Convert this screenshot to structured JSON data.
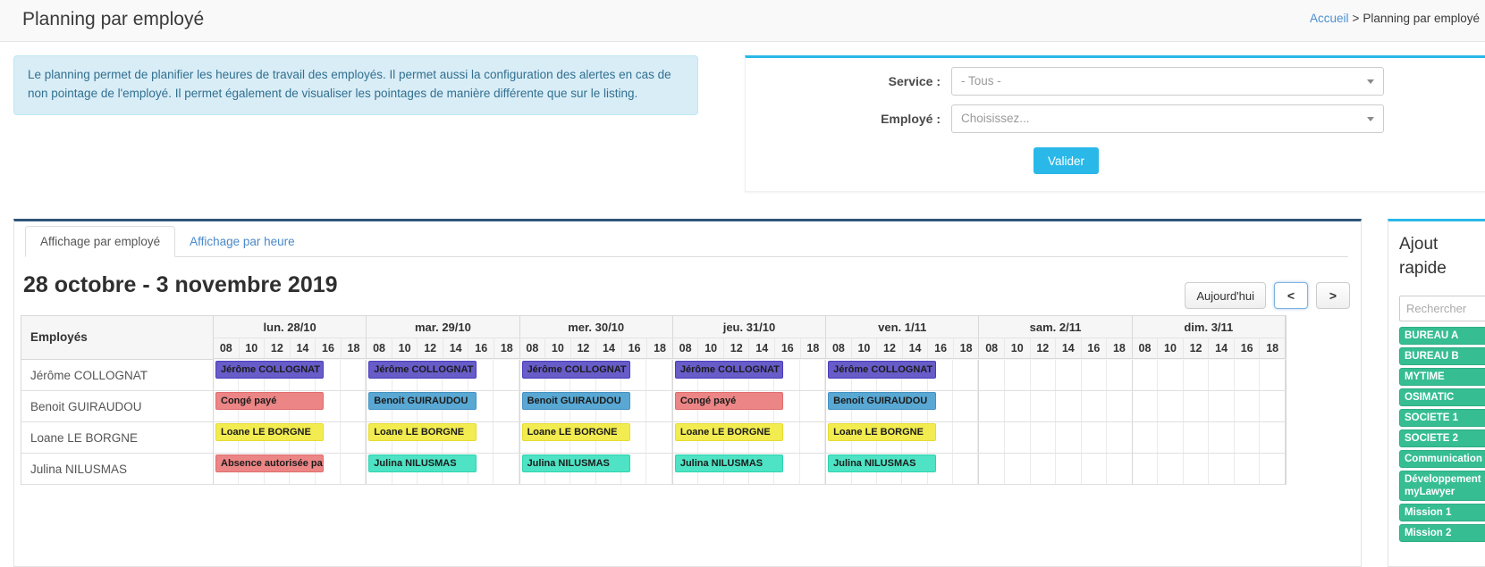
{
  "header": {
    "title": "Planning par employé",
    "breadcrumb": {
      "home": "Accueil",
      "separator": ">",
      "current": "Planning par employé"
    }
  },
  "info_text": "Le planning permet de planifier les heures de travail des employés. Il permet aussi la configuration des alertes en cas de non pointage de l'employé. Il permet également de visualiser les pointages de manière différente que sur le listing.",
  "filter": {
    "service_label": "Service :",
    "service_value": "- Tous -",
    "employee_label": "Employé :",
    "employee_placeholder": "Choisissez...",
    "submit_label": "Valider"
  },
  "tabs": {
    "by_employee": "Affichage par employé",
    "by_hour": "Affichage par heure"
  },
  "planning": {
    "period_title": "28 octobre - 3 novembre 2019",
    "today_label": "Aujourd'hui",
    "prev_label": "<",
    "next_label": ">"
  },
  "table": {
    "employee_header": "Employés",
    "hours": [
      "08",
      "10",
      "12",
      "14",
      "16",
      "18"
    ],
    "days": [
      "lun. 28/10",
      "mar. 29/10",
      "mer. 30/10",
      "jeu. 31/10",
      "ven. 1/11",
      "sam. 2/11",
      "dim. 3/11"
    ],
    "rows": [
      {
        "name": "Jérôme COLLOGNAT",
        "events": [
          {
            "day": 0,
            "label": "Jérôme COLLOGNAT",
            "color": "purple"
          },
          {
            "day": 1,
            "label": "Jérôme COLLOGNAT",
            "color": "purple"
          },
          {
            "day": 2,
            "label": "Jérôme COLLOGNAT",
            "color": "purple"
          },
          {
            "day": 3,
            "label": "Jérôme COLLOGNAT",
            "color": "purple"
          },
          {
            "day": 4,
            "label": "Jérôme COLLOGNAT",
            "color": "purple"
          }
        ]
      },
      {
        "name": "Benoit GUIRAUDOU",
        "events": [
          {
            "day": 0,
            "label": "Congé payé",
            "color": "red"
          },
          {
            "day": 1,
            "label": "Benoit GUIRAUDOU",
            "color": "blue"
          },
          {
            "day": 2,
            "label": "Benoit GUIRAUDOU",
            "color": "blue"
          },
          {
            "day": 3,
            "label": "Congé payé",
            "color": "red"
          },
          {
            "day": 4,
            "label": "Benoit GUIRAUDOU",
            "color": "blue"
          }
        ]
      },
      {
        "name": "Loane LE BORGNE",
        "events": [
          {
            "day": 0,
            "label": "Loane LE BORGNE",
            "color": "yellow"
          },
          {
            "day": 1,
            "label": "Loane LE BORGNE",
            "color": "yellow"
          },
          {
            "day": 2,
            "label": "Loane LE BORGNE",
            "color": "yellow"
          },
          {
            "day": 3,
            "label": "Loane LE BORGNE",
            "color": "yellow"
          },
          {
            "day": 4,
            "label": "Loane LE BORGNE",
            "color": "yellow"
          }
        ]
      },
      {
        "name": "Julina NILUSMAS",
        "events": [
          {
            "day": 0,
            "label": "Absence autorisée payé",
            "color": "red"
          },
          {
            "day": 1,
            "label": "Julina NILUSMAS",
            "color": "teal"
          },
          {
            "day": 2,
            "label": "Julina NILUSMAS",
            "color": "teal"
          },
          {
            "day": 3,
            "label": "Julina NILUSMAS",
            "color": "teal"
          },
          {
            "day": 4,
            "label": "Julina NILUSMAS",
            "color": "teal"
          }
        ]
      }
    ]
  },
  "colors": {
    "accent_cyan": "#29b8e8",
    "panel_navy": "#2e5578",
    "tag_green": "#36bd92",
    "purple": {
      "bg": "#675cc8",
      "border": "#4b3cbd"
    },
    "red": {
      "bg": "#ec8585",
      "border": "#e06d6d"
    },
    "blue": {
      "bg": "#59a8d4",
      "border": "#4392c4"
    },
    "yellow": {
      "bg": "#f2ec50",
      "border": "#e4dc33"
    },
    "teal": {
      "bg": "#4de3c4",
      "border": "#2dd4ae"
    }
  },
  "sidebar": {
    "title": "Ajout rapide",
    "search_placeholder": "Rechercher",
    "tags": [
      "BUREAU A",
      "BUREAU B",
      "MYTIME",
      "OSIMATIC",
      "SOCIETE 1",
      "SOCIETE 2",
      "Communication",
      "Développement myLawyer",
      "Mission 1",
      "Mission 2"
    ]
  }
}
